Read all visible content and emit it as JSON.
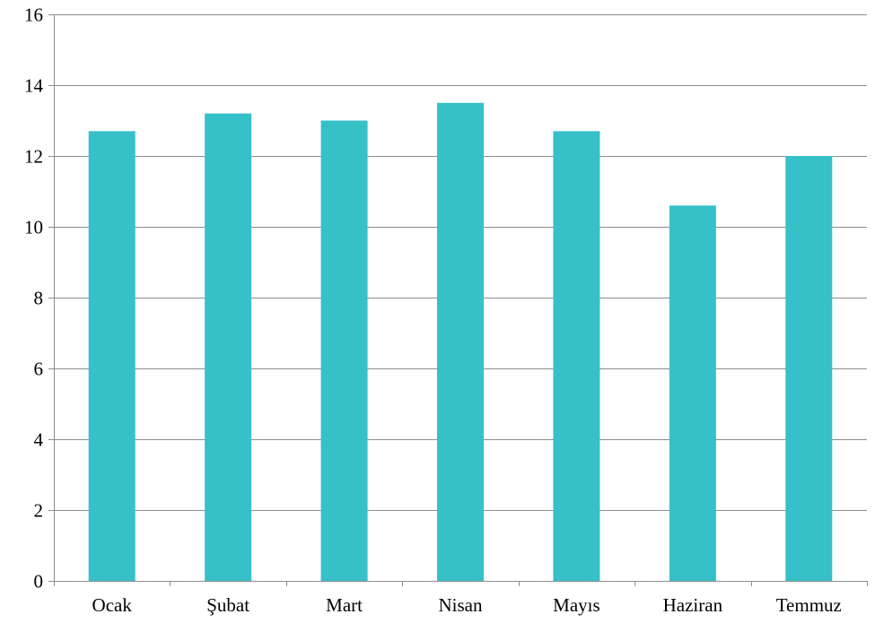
{
  "chart_data": {
    "type": "bar",
    "title": "",
    "xlabel": "",
    "ylabel": "",
    "categories": [
      "Ocak",
      "Şubat",
      "Mart",
      "Nisan",
      "Mayıs",
      "Haziran",
      "Temmuz"
    ],
    "values": [
      12.7,
      13.2,
      13.0,
      13.5,
      12.7,
      10.6,
      12.0
    ],
    "ylim": [
      0,
      16
    ],
    "yticks": [
      0,
      2,
      4,
      6,
      8,
      10,
      12,
      14,
      16
    ],
    "grid": true,
    "legend": "none",
    "bar_color": "#36C0C8"
  }
}
